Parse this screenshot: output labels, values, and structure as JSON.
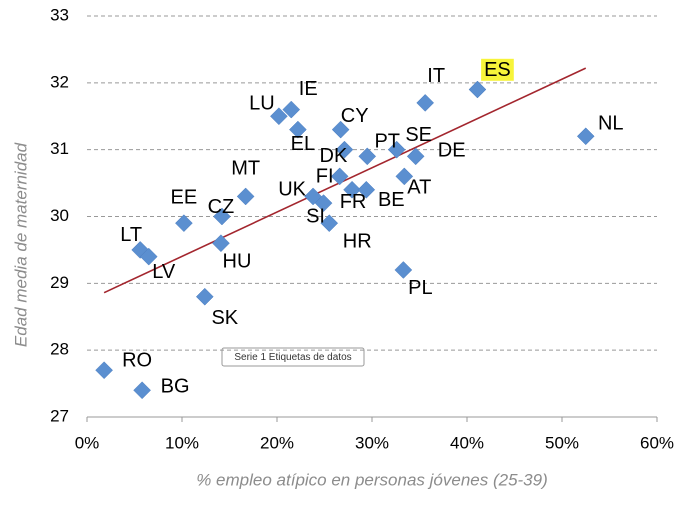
{
  "chart_data": {
    "type": "scatter",
    "x_label": "% empleo atípico en personas jóvenes (25-39)",
    "y_label": "Edad media de maternidad",
    "tooltip": "Serie 1 Etiquetas de datos",
    "categories": [
      "RO",
      "BG",
      "LT",
      "LV",
      "EE",
      "CZ",
      "HU",
      "SK",
      "MT",
      "LU",
      "IE",
      "EL",
      "CY",
      "DK",
      "UK",
      "FI",
      "SI",
      "HR",
      "FR",
      "BE",
      "PT",
      "SE",
      "DE",
      "AT",
      "PL",
      "IT",
      "ES",
      "NL"
    ],
    "x": [
      1.8,
      5.8,
      5.6,
      6.5,
      10.2,
      14.2,
      14.1,
      12.4,
      16.7,
      20.2,
      21.5,
      22.2,
      26.7,
      27.1,
      23.8,
      26.6,
      24.9,
      25.5,
      27.9,
      29.4,
      29.5,
      32.6,
      34.6,
      33.4,
      33.3,
      35.6,
      41.1,
      52.5
    ],
    "values": [
      27.7,
      27.4,
      29.5,
      29.4,
      29.9,
      30.0,
      29.6,
      28.8,
      30.3,
      31.5,
      31.6,
      31.3,
      31.3,
      31.0,
      30.3,
      30.6,
      30.2,
      29.9,
      30.4,
      30.4,
      30.9,
      31.0,
      30.9,
      30.6,
      29.2,
      31.7,
      31.9,
      31.2
    ],
    "color": "#5b8fd0",
    "highlight": {
      "index": 26,
      "color": "#f7f43a"
    },
    "trendline": {
      "x": [
        1.8,
        52.5
      ],
      "values": [
        28.86,
        32.22
      ],
      "color": "#a3262e"
    },
    "xlim": [
      0,
      60
    ],
    "xticks": [
      {
        "value": 0,
        "label": "0%"
      },
      {
        "value": 10,
        "label": "10%"
      },
      {
        "value": 20,
        "label": "20%"
      },
      {
        "value": 30,
        "label": "30%"
      },
      {
        "value": 40,
        "label": "40%"
      },
      {
        "value": 50,
        "label": "50%"
      },
      {
        "value": 60,
        "label": "60%"
      }
    ],
    "ylim": [
      27,
      33
    ],
    "yticks": [
      27,
      28,
      29,
      30,
      31,
      32,
      33
    ],
    "grid": true
  }
}
